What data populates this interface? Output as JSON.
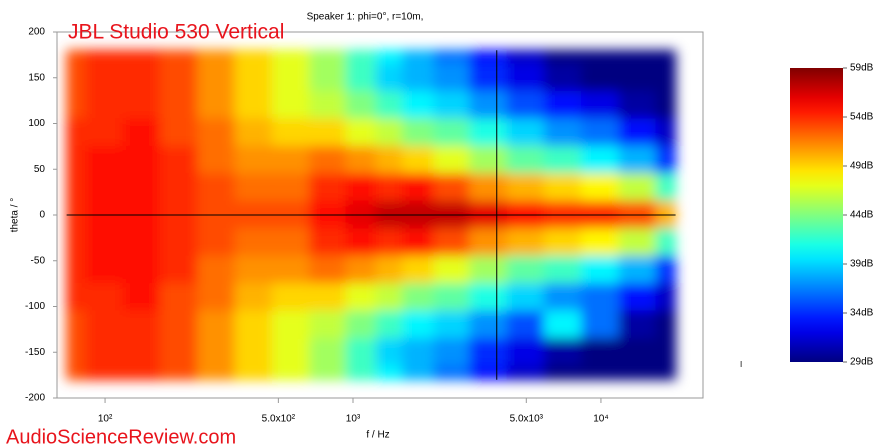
{
  "chart_data": {
    "type": "heatmap",
    "title": "JBL Studio 530 Vertical",
    "subtitle": "Speaker 1: phi=0°, r=10m,",
    "x_label": "f / Hz",
    "y_label": "theta / °",
    "watermark": "AudioScienceReview.com",
    "annotation": "I",
    "x_scale": "log",
    "colormap": "jet",
    "xlim": [
      64,
      25800
    ],
    "ylim": [
      -200,
      200
    ],
    "xticks": [
      {
        "value": 100,
        "label": "10²"
      },
      {
        "value": 500,
        "label": "5.0x10²"
      },
      {
        "value": 1000,
        "label": "10³"
      },
      {
        "value": 5000,
        "label": "5.0x10³"
      },
      {
        "value": 10000,
        "label": "10⁴"
      }
    ],
    "yticks": [
      -200,
      -150,
      -100,
      -50,
      0,
      50,
      100,
      150,
      200
    ],
    "zlim": [
      29,
      59
    ],
    "zticks": [
      {
        "value": 29,
        "label": "29dB"
      },
      {
        "value": 34,
        "label": "34dB"
      },
      {
        "value": 39,
        "label": "39dB"
      },
      {
        "value": 44,
        "label": "44dB"
      },
      {
        "value": 49,
        "label": "49dB"
      },
      {
        "value": 54,
        "label": "54dB"
      },
      {
        "value": 59,
        "label": "59dB"
      }
    ],
    "cursor": {
      "x": 3800,
      "y": 0
    },
    "x": [
      70,
      100,
      140,
      200,
      280,
      400,
      560,
      800,
      1100,
      1400,
      1800,
      2500,
      3500,
      5000,
      7000,
      10000,
      14000,
      20000
    ],
    "y": [
      180,
      150,
      120,
      90,
      60,
      30,
      0,
      -30,
      -60,
      -90,
      -120,
      -150,
      -180
    ],
    "z": [
      [
        53,
        54,
        54,
        53,
        51,
        49,
        47,
        45,
        42,
        40,
        38,
        36,
        33,
        31,
        29,
        29,
        29,
        29
      ],
      [
        53,
        54,
        54,
        53,
        51,
        49,
        47,
        45,
        42,
        39,
        38,
        37,
        34,
        32,
        30,
        29,
        29,
        29
      ],
      [
        53,
        54,
        54,
        53,
        51,
        49,
        47,
        46,
        44,
        42,
        40,
        39,
        37,
        35,
        33,
        32,
        30,
        29
      ],
      [
        54,
        54,
        55,
        53,
        52,
        50,
        49,
        49,
        47,
        46,
        44,
        43,
        41,
        39,
        37,
        36,
        33,
        31
      ],
      [
        54,
        55,
        55,
        54,
        52,
        51,
        51,
        52,
        51,
        50,
        49,
        47,
        45,
        43,
        42,
        40,
        38,
        34
      ],
      [
        54,
        55,
        55,
        54,
        53,
        52,
        52,
        54,
        55,
        54,
        55,
        53,
        51,
        50,
        49,
        48,
        46,
        42
      ],
      [
        54,
        55,
        55,
        54,
        53,
        53,
        53,
        55,
        56,
        57,
        57,
        57,
        56,
        55,
        54,
        54,
        53,
        50
      ],
      [
        54,
        55,
        55,
        54,
        53,
        52,
        52,
        54,
        55,
        54,
        55,
        53,
        51,
        50,
        49,
        48,
        46,
        42
      ],
      [
        54,
        55,
        55,
        54,
        52,
        51,
        51,
        52,
        51,
        50,
        49,
        47,
        45,
        43,
        42,
        40,
        38,
        34
      ],
      [
        54,
        54,
        55,
        53,
        52,
        50,
        49,
        49,
        47,
        46,
        44,
        43,
        41,
        39,
        37,
        36,
        33,
        31
      ],
      [
        53,
        54,
        54,
        53,
        51,
        49,
        47,
        46,
        44,
        42,
        40,
        39,
        37,
        35,
        40,
        36,
        30,
        29
      ],
      [
        53,
        54,
        54,
        53,
        51,
        49,
        47,
        45,
        42,
        39,
        38,
        37,
        34,
        32,
        30,
        29,
        29,
        29
      ],
      [
        53,
        54,
        54,
        53,
        51,
        49,
        47,
        45,
        42,
        40,
        38,
        36,
        33,
        31,
        29,
        29,
        29,
        29
      ]
    ]
  }
}
